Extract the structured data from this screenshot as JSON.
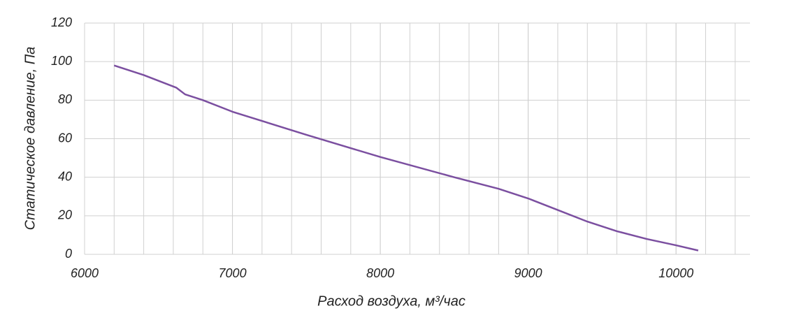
{
  "chart_data": {
    "type": "line",
    "x_label": "Расход воздуха, м³/час",
    "y_label": "Статическое давление, Па",
    "x": [
      6200,
      6400,
      6620,
      6680,
      6800,
      7000,
      7500,
      8000,
      8500,
      8800,
      9000,
      9200,
      9400,
      9600,
      9800,
      10000,
      10150
    ],
    "series": [
      {
        "color": "#7b4fa0",
        "values": [
          98,
          93,
          86.5,
          83,
          80,
          74,
          62,
          50.5,
          40,
          34,
          29,
          23,
          17,
          12,
          8,
          4.7,
          2
        ]
      }
    ],
    "xlim": [
      6000,
      10500
    ],
    "xticks": [
      6000,
      7000,
      8000,
      9000,
      10000
    ],
    "ylim": [
      0,
      120
    ],
    "yticks": [
      0,
      20,
      40,
      60,
      80,
      100,
      120
    ],
    "grid": true,
    "minor_grid_step": 200
  }
}
